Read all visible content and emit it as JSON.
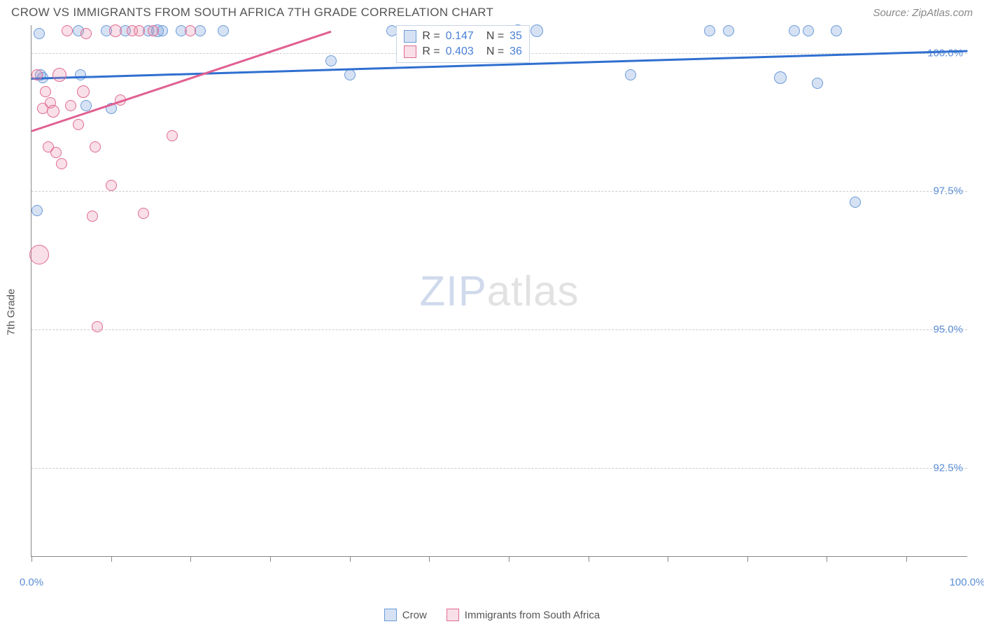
{
  "header": {
    "title": "CROW VS IMMIGRANTS FROM SOUTH AFRICA 7TH GRADE CORRELATION CHART",
    "source": "Source: ZipAtlas.com"
  },
  "chart": {
    "type": "scatter",
    "ylabel": "7th Grade",
    "background_color": "#ffffff",
    "grid_color": "#cccccc",
    "axis_color": "#888888",
    "xlim": [
      0,
      100
    ],
    "ylim": [
      90.9,
      100.5
    ],
    "yticks": [
      {
        "v": 100.0,
        "label": "100.0%"
      },
      {
        "v": 97.5,
        "label": "97.5%"
      },
      {
        "v": 95.0,
        "label": "95.0%"
      },
      {
        "v": 92.5,
        "label": "92.5%"
      }
    ],
    "xticks_minor": [
      0,
      8.5,
      17,
      25.5,
      34,
      42.5,
      51,
      59.5,
      68,
      76.5,
      85,
      93.5
    ],
    "xticks_labels": [
      {
        "v": 0,
        "label": "0.0%"
      },
      {
        "v": 100,
        "label": "100.0%"
      }
    ],
    "watermark": {
      "zip": "ZIP",
      "atlas": "atlas"
    },
    "series": [
      {
        "name": "Crow",
        "color_fill": "rgba(120,160,220,0.30)",
        "color_stroke": "#6a9ad8",
        "trend_color": "#2f6fd0",
        "trend": {
          "x0": 0,
          "y0": 99.55,
          "x1": 100,
          "y1": 100.05
        },
        "r_label": "R =",
        "r_value": "0.147",
        "n_label": "N =",
        "n_value": "35",
        "points": [
          {
            "x": 0.8,
            "y": 100.35,
            "r": 8
          },
          {
            "x": 1.0,
            "y": 99.6,
            "r": 8
          },
          {
            "x": 1.2,
            "y": 99.55,
            "r": 8
          },
          {
            "x": 0.6,
            "y": 97.15,
            "r": 8
          },
          {
            "x": 5.0,
            "y": 100.4,
            "r": 8
          },
          {
            "x": 5.2,
            "y": 99.6,
            "r": 8
          },
          {
            "x": 5.8,
            "y": 99.05,
            "r": 8
          },
          {
            "x": 8.0,
            "y": 100.4,
            "r": 8
          },
          {
            "x": 8.5,
            "y": 99.0,
            "r": 8
          },
          {
            "x": 10.0,
            "y": 100.4,
            "r": 8
          },
          {
            "x": 12.5,
            "y": 100.4,
            "r": 8
          },
          {
            "x": 13.5,
            "y": 100.4,
            "r": 9
          },
          {
            "x": 14.0,
            "y": 100.4,
            "r": 8
          },
          {
            "x": 16.0,
            "y": 100.4,
            "r": 8
          },
          {
            "x": 18.0,
            "y": 100.4,
            "r": 8
          },
          {
            "x": 20.5,
            "y": 100.4,
            "r": 8
          },
          {
            "x": 32.0,
            "y": 99.85,
            "r": 8
          },
          {
            "x": 34.0,
            "y": 99.6,
            "r": 8
          },
          {
            "x": 38.5,
            "y": 100.4,
            "r": 8
          },
          {
            "x": 40.0,
            "y": 100.4,
            "r": 8
          },
          {
            "x": 49.5,
            "y": 100.4,
            "r": 8
          },
          {
            "x": 52.0,
            "y": 100.4,
            "r": 9
          },
          {
            "x": 54.0,
            "y": 100.4,
            "r": 9
          },
          {
            "x": 64.0,
            "y": 99.6,
            "r": 8
          },
          {
            "x": 72.5,
            "y": 100.4,
            "r": 8
          },
          {
            "x": 74.5,
            "y": 100.4,
            "r": 8
          },
          {
            "x": 80.0,
            "y": 99.55,
            "r": 9
          },
          {
            "x": 81.5,
            "y": 100.4,
            "r": 8
          },
          {
            "x": 83.0,
            "y": 100.4,
            "r": 8
          },
          {
            "x": 84.0,
            "y": 99.45,
            "r": 8
          },
          {
            "x": 86.0,
            "y": 100.4,
            "r": 8
          },
          {
            "x": 88.0,
            "y": 97.3,
            "r": 8
          }
        ]
      },
      {
        "name": "Immigrants from South Africa",
        "color_fill": "rgba(235,140,170,0.28)",
        "color_stroke": "#e06b92",
        "trend_color": "#e06090",
        "trend": {
          "x0": 0,
          "y0": 98.6,
          "x1": 32,
          "y1": 100.4
        },
        "r_label": "R =",
        "r_value": "0.403",
        "n_label": "N =",
        "n_value": "36",
        "points": [
          {
            "x": 0.6,
            "y": 99.6,
            "r": 8
          },
          {
            "x": 0.8,
            "y": 96.35,
            "r": 14
          },
          {
            "x": 1.2,
            "y": 99.0,
            "r": 8
          },
          {
            "x": 1.5,
            "y": 99.3,
            "r": 8
          },
          {
            "x": 1.8,
            "y": 98.3,
            "r": 8
          },
          {
            "x": 2.0,
            "y": 99.1,
            "r": 8
          },
          {
            "x": 2.3,
            "y": 98.95,
            "r": 9
          },
          {
            "x": 2.6,
            "y": 98.2,
            "r": 8
          },
          {
            "x": 3.0,
            "y": 99.6,
            "r": 10
          },
          {
            "x": 3.2,
            "y": 98.0,
            "r": 8
          },
          {
            "x": 3.8,
            "y": 100.4,
            "r": 8
          },
          {
            "x": 4.2,
            "y": 99.05,
            "r": 8
          },
          {
            "x": 5.0,
            "y": 98.7,
            "r": 8
          },
          {
            "x": 5.5,
            "y": 99.3,
            "r": 9
          },
          {
            "x": 5.8,
            "y": 100.35,
            "r": 8
          },
          {
            "x": 6.5,
            "y": 97.05,
            "r": 8
          },
          {
            "x": 6.8,
            "y": 98.3,
            "r": 8
          },
          {
            "x": 7.0,
            "y": 95.05,
            "r": 8
          },
          {
            "x": 8.5,
            "y": 97.6,
            "r": 8
          },
          {
            "x": 9.0,
            "y": 100.4,
            "r": 9
          },
          {
            "x": 9.5,
            "y": 99.15,
            "r": 8
          },
          {
            "x": 10.8,
            "y": 100.4,
            "r": 8
          },
          {
            "x": 11.5,
            "y": 100.4,
            "r": 8
          },
          {
            "x": 12.0,
            "y": 97.1,
            "r": 8
          },
          {
            "x": 13.0,
            "y": 100.4,
            "r": 8
          },
          {
            "x": 15.0,
            "y": 98.5,
            "r": 8
          },
          {
            "x": 17.0,
            "y": 100.4,
            "r": 8
          }
        ]
      }
    ]
  },
  "legend": {
    "items": [
      {
        "label": "Crow",
        "fill": "rgba(120,160,220,0.30)",
        "stroke": "#6a9ad8"
      },
      {
        "label": "Immigrants from South Africa",
        "fill": "rgba(235,140,170,0.28)",
        "stroke": "#e06b92"
      }
    ]
  }
}
